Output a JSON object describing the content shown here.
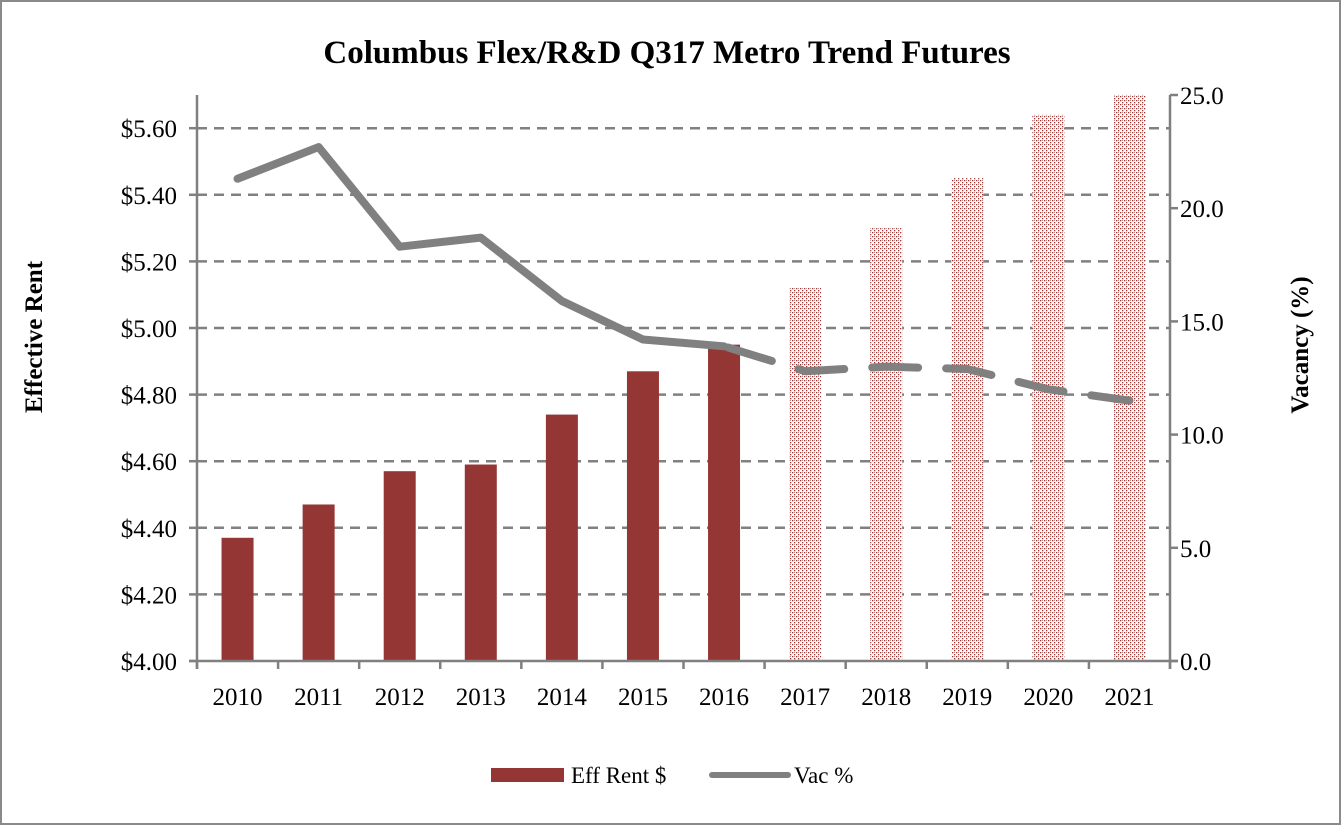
{
  "chart_data": {
    "type": "bar",
    "title": "Columbus Flex/R&D Q317 Metro Trend Futures",
    "categories": [
      "2010",
      "2011",
      "2012",
      "2013",
      "2014",
      "2015",
      "2016",
      "2017",
      "2018",
      "2019",
      "2020",
      "2021"
    ],
    "forecast_start_index": 7,
    "series": [
      {
        "name": "Eff Rent $",
        "type": "bar",
        "axis": "left",
        "color": "#943634",
        "values": [
          4.37,
          4.47,
          4.57,
          4.59,
          4.74,
          4.87,
          4.95,
          5.12,
          5.3,
          5.45,
          5.64,
          5.7
        ]
      },
      {
        "name": "Vac %",
        "type": "line",
        "axis": "right",
        "color": "#808080",
        "values": [
          21.3,
          22.7,
          18.3,
          18.7,
          15.9,
          14.2,
          13.9,
          12.8,
          13.0,
          12.9,
          12.0,
          11.5
        ]
      }
    ],
    "ylabel": "Effective Rent",
    "y2label": "Vacancy (%)",
    "xlabel": "",
    "ylim": [
      4.0,
      5.7
    ],
    "y_ticks": [
      "$4.00",
      "$4.20",
      "$4.40",
      "$4.60",
      "$4.80",
      "$5.00",
      "$5.20",
      "$5.40",
      "$5.60"
    ],
    "y_tick_values": [
      4.0,
      4.2,
      4.4,
      4.6,
      4.8,
      5.0,
      5.2,
      5.4,
      5.6
    ],
    "y2lim": [
      0,
      25
    ],
    "y2_ticks": [
      "0.0",
      "5.0",
      "10.0",
      "15.0",
      "20.0",
      "25.0"
    ],
    "y2_tick_values": [
      0,
      5,
      10,
      15,
      20,
      25
    ],
    "grid": "horizontal dashed",
    "legend_position": "bottom-center",
    "legend": [
      "Eff Rent $",
      "Vac %"
    ]
  }
}
